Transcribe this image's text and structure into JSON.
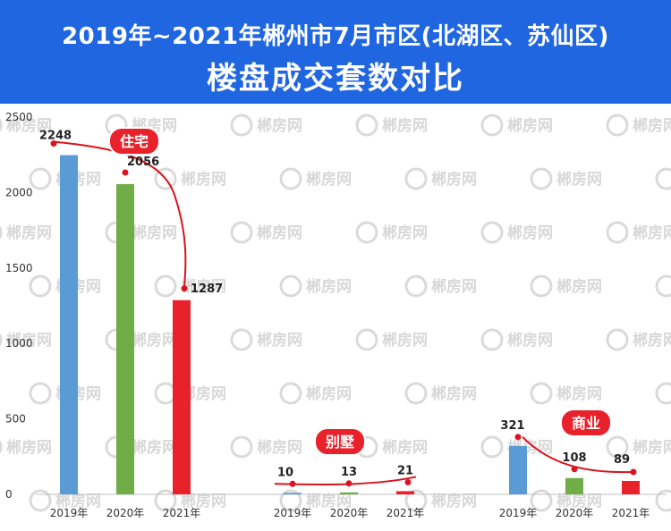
{
  "header": {
    "title_line1": "2019年~2021年郴州市7月市区(北湖区、苏仙区)",
    "title_line2": "楼盘成交套数对比"
  },
  "watermark": "郴房网",
  "chart_data": {
    "type": "bar",
    "ylim": [
      0,
      2500
    ],
    "yticks": [
      0,
      500,
      1000,
      1500,
      2000,
      2500
    ],
    "grid": false,
    "colors": {
      "2019年": "#5b9bd5",
      "2020年": "#70ad47",
      "2021年": "#e8212b",
      "trend": "#d9141f",
      "label_bg": "#e8212b"
    },
    "groups": [
      {
        "name": "住宅",
        "categories": [
          "2019年",
          "2020年",
          "2021年"
        ],
        "values": [
          2248,
          2056,
          1287
        ]
      },
      {
        "name": "别墅",
        "categories": [
          "2019年",
          "2020年",
          "2021年"
        ],
        "values": [
          10,
          13,
          21
        ]
      },
      {
        "name": "商业",
        "categories": [
          "2019年",
          "2020年",
          "2021年"
        ],
        "values": [
          321,
          108,
          89
        ]
      }
    ]
  }
}
